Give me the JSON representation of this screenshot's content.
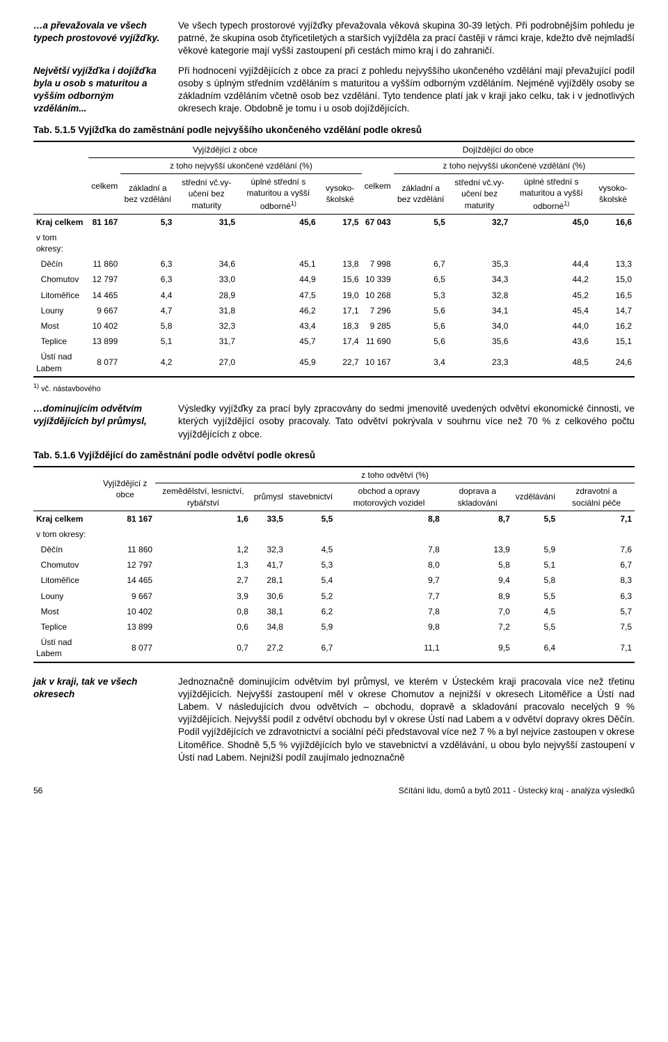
{
  "block1": {
    "side": "…a převažovala ve všech typech prostovové vyjížďky.",
    "main": "Ve všech typech prostorové vyjížďky převažovala věková skupina 30-39 letých. Při podrobnějším pohledu je patrné, že skupina osob čtyřicetiletých a starších vyjížděla za prací častěji v rámci kraje, kdežto dvě nejmladší věkové kategorie mají vyšší zastoupení při cestách mimo kraj i do zahraničí."
  },
  "block2": {
    "side": "Největší vyjížďka i dojížďka byla u osob s maturitou a vyšším odborným vzděláním...",
    "main": "Při hodnocení vyjíždějících z obce za prací z pohledu nejvyššího ukončeného vzdělání mají převažující podíl osoby s úplným středním vzděláním s maturitou a vyšším odborným vzděláním. Nejméně vyjížděly osoby se základním vzděláním včetně osob bez vzdělání. Tyto tendence platí jak v kraji jako celku, tak i v jednotlivých okresech kraje. Obdobně je tomu i u osob dojíždějících."
  },
  "tab515": {
    "title": "Tab. 5.1.5 Vyjížďka do zaměstnání podle nejvyššího ukončeného vzdělání podle okresů",
    "group1": "Vyjíždějící z obce",
    "group2": "Dojíždějící do obce",
    "sub": "z toho nejvyšší ukončené vzdělání (%)",
    "cols": {
      "celkem": "celkem",
      "zakladni": "základní a bez vzdělání",
      "stredni": "střední vč.vy-učení bez maturity",
      "uplne": "úplné střední s maturitou a vyšší odborné",
      "vysoko": "vysoko-školské"
    },
    "sup": "1)",
    "rows": [
      {
        "label": "Kraj celkem",
        "bold": true,
        "v": [
          "81 167",
          "5,3",
          "31,5",
          "45,6",
          "17,5",
          "67 043",
          "5,5",
          "32,7",
          "45,0",
          "16,6"
        ]
      },
      {
        "label": "v tom okresy:",
        "bold": false,
        "v": [
          "",
          "",
          "",
          "",
          "",
          "",
          "",
          "",
          "",
          ""
        ]
      },
      {
        "label": "Děčín",
        "indent": true,
        "v": [
          "11 860",
          "6,3",
          "34,6",
          "45,1",
          "13,8",
          "7 998",
          "6,7",
          "35,3",
          "44,4",
          "13,3"
        ]
      },
      {
        "label": "Chomutov",
        "indent": true,
        "v": [
          "12 797",
          "6,3",
          "33,0",
          "44,9",
          "15,6",
          "10 339",
          "6,5",
          "34,3",
          "44,2",
          "15,0"
        ]
      },
      {
        "label": "Litoměřice",
        "indent": true,
        "v": [
          "14 465",
          "4,4",
          "28,9",
          "47,5",
          "19,0",
          "10 268",
          "5,3",
          "32,8",
          "45,2",
          "16,5"
        ]
      },
      {
        "label": "Louny",
        "indent": true,
        "v": [
          "9 667",
          "4,7",
          "31,8",
          "46,2",
          "17,1",
          "7 296",
          "5,6",
          "34,1",
          "45,4",
          "14,7"
        ]
      },
      {
        "label": "Most",
        "indent": true,
        "v": [
          "10 402",
          "5,8",
          "32,3",
          "43,4",
          "18,3",
          "9 285",
          "5,6",
          "34,0",
          "44,0",
          "16,2"
        ]
      },
      {
        "label": "Teplice",
        "indent": true,
        "v": [
          "13 899",
          "5,1",
          "31,7",
          "45,7",
          "17,4",
          "11 690",
          "5,6",
          "35,6",
          "43,6",
          "15,1"
        ]
      },
      {
        "label": "Ústí nad Labem",
        "indent": true,
        "v": [
          "8 077",
          "4,2",
          "27,0",
          "45,9",
          "22,7",
          "10 167",
          "3,4",
          "23,3",
          "48,5",
          "24,6"
        ]
      }
    ],
    "footnote": "vč. nástavbového",
    "footsup": "1)"
  },
  "block3": {
    "side": "…dominujícím odvětvím vyjíždějících byl průmysl,",
    "main": "Výsledky vyjížďky za prací byly zpracovány do sedmi jmenovitě uvedených odvětví ekonomické činnosti, ve kterých vyjíždějící osoby pracovaly. Tato odvětví pokrývala v souhrnu více než 70 % z celkového počtu vyjíždějících z obce."
  },
  "tab516": {
    "title": "Tab. 5.1.6 Vyjíždějící do zaměstnání podle odvětví podle okresů",
    "headgroup": "z toho odvětví (%)",
    "cols": {
      "vyj": "Vyjíždějící z obce",
      "zem": "zemědělství, lesnictví, rybářství",
      "prum": "průmysl",
      "stav": "stavebnictví",
      "obch": "obchod a opravy motorových vozidel",
      "dopr": "doprava a skladování",
      "vzd": "vzdělávání",
      "zdrav": "zdravotní a sociální péče"
    },
    "rows": [
      {
        "label": "Kraj celkem",
        "bold": true,
        "v": [
          "81 167",
          "1,6",
          "33,5",
          "5,5",
          "8,8",
          "8,7",
          "5,5",
          "7,1"
        ]
      },
      {
        "label": "v tom okresy:",
        "bold": false,
        "v": [
          "",
          "",
          "",
          "",
          "",
          "",
          "",
          ""
        ]
      },
      {
        "label": "Děčín",
        "indent": true,
        "v": [
          "11 860",
          "1,2",
          "32,3",
          "4,5",
          "7,8",
          "13,9",
          "5,9",
          "7,6"
        ]
      },
      {
        "label": "Chomutov",
        "indent": true,
        "v": [
          "12 797",
          "1,3",
          "41,7",
          "5,3",
          "8,0",
          "5,8",
          "5,1",
          "6,7"
        ]
      },
      {
        "label": "Litoměřice",
        "indent": true,
        "v": [
          "14 465",
          "2,7",
          "28,1",
          "5,4",
          "9,7",
          "9,4",
          "5,8",
          "8,3"
        ]
      },
      {
        "label": "Louny",
        "indent": true,
        "v": [
          "9 667",
          "3,9",
          "30,6",
          "5,2",
          "7,7",
          "8,9",
          "5,5",
          "6,3"
        ]
      },
      {
        "label": "Most",
        "indent": true,
        "v": [
          "10 402",
          "0,8",
          "38,1",
          "6,2",
          "7,8",
          "7,0",
          "4,5",
          "5,7"
        ]
      },
      {
        "label": "Teplice",
        "indent": true,
        "v": [
          "13 899",
          "0,6",
          "34,8",
          "5,9",
          "9,8",
          "7,2",
          "5,5",
          "7,5"
        ]
      },
      {
        "label": "Ústí nad Labem",
        "indent": true,
        "v": [
          "8 077",
          "0,7",
          "27,2",
          "6,7",
          "11,1",
          "9,5",
          "6,4",
          "7,1"
        ]
      }
    ]
  },
  "block4": {
    "side": "jak v kraji, tak ve všech okresech",
    "main": "Jednoznačně dominujícím odvětvím byl průmysl, ve kterém v Ústeckém kraji pracovala více než třetinu vyjíždějících. Nejvyšší zastoupení měl v okrese Chomutov a nejnižší v okresech Litoměřice a Ústí nad Labem. V následujících dvou odvětvích – obchodu, dopravě a skladování pracovalo necelých 9 % vyjíždějících. Nejvyšší podíl z odvětví obchodu byl v okrese Ústí nad Labem a v odvětví dopravy okres Děčín. Podíl vyjíždějících ve zdravotnictví a sociální péči představoval více než 7 % a byl nejvíce zastoupen v okrese Litoměřice. Shodně 5,5 % vyjíždějících bylo ve stavebnictví a vzdělávání, u obou bylo nejvyšší zastoupení v Ústí nad Labem. Nejnižší podíl zaujímalo jednoznačně"
  },
  "footer": {
    "page": "56",
    "title": "Sčítání lidu, domů a bytů 2011 - Ústecký kraj - analýza výsledků"
  }
}
